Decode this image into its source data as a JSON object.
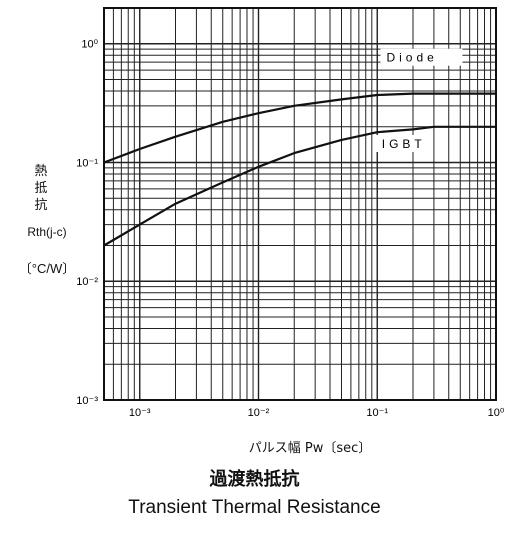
{
  "chart_data": {
    "type": "line",
    "title": "過渡熱抵抗",
    "subtitle": "Transient Thermal Resistance",
    "xlabel": "パルス幅 Pw〔sec〕",
    "ylabel_jp": [
      "熱",
      "抵",
      "抗"
    ],
    "ylabel_symbol": "Rth(j-c)",
    "ylabel_unit": "〔°C/W〕",
    "xscale": "log",
    "yscale": "log",
    "xlim": [
      0.0005,
      1
    ],
    "ylim": [
      0.001,
      2
    ],
    "grid": true,
    "x_ticks": [
      {
        "value": 0.001,
        "label": "10⁻³"
      },
      {
        "value": 0.01,
        "label": "10⁻²"
      },
      {
        "value": 0.1,
        "label": "10⁻¹"
      },
      {
        "value": 1,
        "label": "10⁰"
      }
    ],
    "y_ticks": [
      {
        "value": 0.001,
        "label": "10⁻³"
      },
      {
        "value": 0.01,
        "label": "10⁻²"
      },
      {
        "value": 0.1,
        "label": "10⁻¹"
      },
      {
        "value": 1,
        "label": "10⁰"
      }
    ],
    "series": [
      {
        "name": "Diode",
        "x": [
          0.0005,
          0.001,
          0.002,
          0.005,
          0.01,
          0.02,
          0.05,
          0.1,
          0.2,
          0.3,
          0.5,
          1
        ],
        "y": [
          0.1,
          0.13,
          0.165,
          0.22,
          0.26,
          0.3,
          0.34,
          0.37,
          0.38,
          0.38,
          0.38,
          0.38
        ]
      },
      {
        "name": "IGBT",
        "x": [
          0.0005,
          0.001,
          0.002,
          0.005,
          0.01,
          0.02,
          0.05,
          0.1,
          0.2,
          0.3,
          0.5,
          1
        ],
        "y": [
          0.02,
          0.03,
          0.045,
          0.068,
          0.092,
          0.12,
          0.155,
          0.18,
          0.19,
          0.2,
          0.2,
          0.2
        ]
      }
    ]
  }
}
